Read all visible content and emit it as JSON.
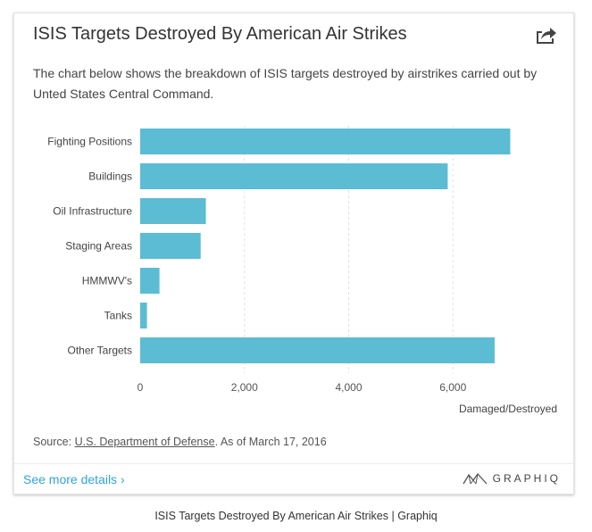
{
  "card": {
    "title": "ISIS Targets Destroyed By American Air Strikes",
    "description": "The chart below shows the breakdown of ISIS targets destroyed by airstrikes carried out by Unted States Central Command.",
    "share_icon": "share-arrow-icon",
    "source_prefix": "Source: ",
    "source_link": "U.S. Department of Defense",
    "source_suffix": ". As of March 17, 2016",
    "more_details": "See more details ›",
    "brand": "GRAPHIQ",
    "brand_icon": "graphiq-logo-icon"
  },
  "caption": "ISIS Targets Destroyed By American Air Strikes | Graphiq",
  "colors": {
    "bar": "#5bbcd4",
    "link": "#2fa4d8"
  },
  "chart_data": {
    "type": "bar",
    "orientation": "horizontal",
    "categories": [
      "Fighting Positions",
      "Buildings",
      "Oil Infrastructure",
      "Staging Areas",
      "HMMWV's",
      "Tanks",
      "Other Targets"
    ],
    "values": [
      7100,
      5900,
      1260,
      1160,
      370,
      130,
      6800
    ],
    "xlabel": "Damaged/Destroyed",
    "xlim": [
      0,
      8000
    ],
    "xticks": [
      0,
      2000,
      4000,
      6000
    ],
    "xtick_labels": [
      "0",
      "2,000",
      "4,000",
      "6,000"
    ],
    "grid": true
  }
}
